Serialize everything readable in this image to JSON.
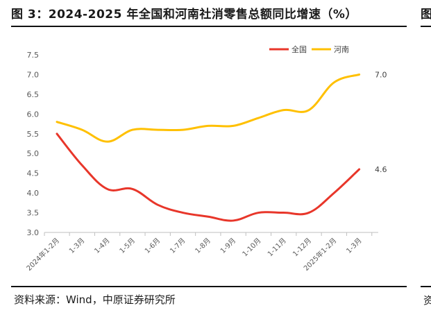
{
  "header": {
    "title": "图 3：2024-2025 年全国和河南社消零售总额同比增速（%）",
    "right_edge_glyph": "图"
  },
  "footer": {
    "source": "资料来源：Wind，中原证券研究所",
    "right_edge_glyph": "资"
  },
  "colors": {
    "national": "#e8362a",
    "henan": "#ffc000",
    "axis": "#bfbfbf"
  },
  "chart_data": {
    "type": "line",
    "title": "2024-2025 年全国和河南社消零售总额同比增速（%）",
    "categories": [
      "2024年1-2月",
      "1-3月",
      "1-4月",
      "1-5月",
      "1-6月",
      "1-7月",
      "1-8月",
      "1-9月",
      "1-10月",
      "1-11月",
      "1-12月",
      "2025年1-2月",
      "1-3月"
    ],
    "series": [
      {
        "name": "全国",
        "values": [
          5.5,
          4.7,
          4.1,
          4.1,
          3.7,
          3.5,
          3.4,
          3.3,
          3.5,
          3.5,
          3.5,
          4.0,
          4.6
        ]
      },
      {
        "name": "河南",
        "values": [
          5.8,
          5.6,
          5.3,
          5.6,
          5.6,
          5.6,
          5.7,
          5.7,
          5.9,
          6.1,
          6.1,
          6.8,
          7.0
        ]
      }
    ],
    "ylim": [
      3.0,
      7.5
    ],
    "yticks": [
      "3.0",
      "3.5",
      "4.0",
      "4.5",
      "5.0",
      "5.5",
      "6.0",
      "6.5",
      "7.0",
      "7.5"
    ],
    "end_labels": [
      "4.6",
      "7.0"
    ],
    "legend_position": "top-right",
    "grid": false,
    "xlabel": "",
    "ylabel": ""
  }
}
